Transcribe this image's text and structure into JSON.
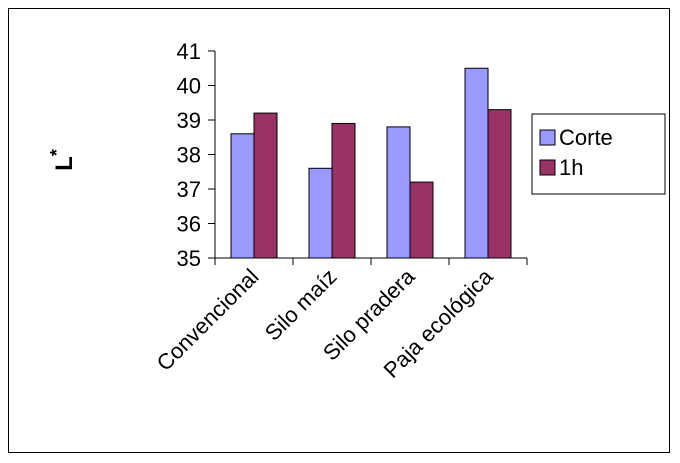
{
  "chart_data": {
    "type": "bar",
    "title": "",
    "xlabel": "",
    "ylabel": "L*",
    "ylim": [
      35,
      41
    ],
    "yticks": [
      35,
      36,
      37,
      38,
      39,
      40,
      41
    ],
    "categories": [
      "Convencional",
      "Silo maíz",
      "Silo pradera",
      "Paja ecológica"
    ],
    "series": [
      {
        "name": "Corte",
        "color": "#9999ff",
        "values": [
          38.6,
          37.6,
          38.8,
          40.5
        ]
      },
      {
        "name": "1h",
        "color": "#993366",
        "values": [
          39.2,
          38.9,
          37.2,
          39.3
        ]
      }
    ],
    "grid": false,
    "legend_position": "right"
  }
}
